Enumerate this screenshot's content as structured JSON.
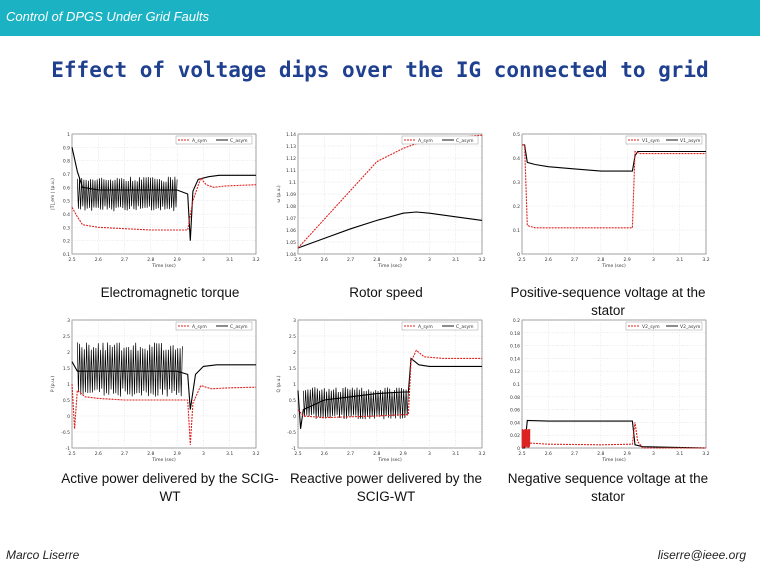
{
  "header": {
    "title": "Control of DPGS Under Grid Faults"
  },
  "slide": {
    "title": "Effect of voltage dips over the IG connected to grid"
  },
  "captions": {
    "p1": "Electromagnetic torque",
    "p2": "Rotor speed",
    "p3": "Positive-sequence voltage at the stator",
    "p4": "Active power delivered by the SCIG-WT",
    "p5": "Reactive power delivered by the SCIG-WT",
    "p6": "Negative sequence voltage at the stator"
  },
  "footer": {
    "author": "Marco Liserre",
    "email": "liserre@ieee.org"
  },
  "colors": {
    "topbar": "#1bb3c4",
    "title": "#1f3f8f",
    "sym": "#000000",
    "asym": "#dd2222"
  },
  "chart_data": [
    {
      "type": "line",
      "id": "p1",
      "xlabel": "Time (sec)",
      "ylabel": "|T|_em | (p.u.)",
      "xticks": [
        "2.5",
        "2.6",
        "2.7",
        "2.8",
        "2.9",
        "3",
        "3.1",
        "3.2"
      ],
      "yticks": [
        "0.1",
        "0.2",
        "0.3",
        "0.4",
        "0.5",
        "0.6",
        "0.7",
        "0.8",
        "0.9",
        "1"
      ],
      "xlim": [
        2.5,
        3.2
      ],
      "ylim": [
        0.1,
        1
      ],
      "legend": [
        "A_sym",
        "C_asym"
      ],
      "series": [
        {
          "role": "sym",
          "values": [
            [
              2.5,
              0.9
            ],
            [
              2.52,
              0.72
            ],
            [
              2.54,
              0.6
            ],
            [
              2.6,
              0.58
            ],
            [
              2.7,
              0.58
            ],
            [
              2.8,
              0.58
            ],
            [
              2.9,
              0.58
            ],
            [
              2.94,
              0.55
            ],
            [
              2.95,
              0.2
            ],
            [
              2.96,
              0.57
            ],
            [
              2.98,
              0.66
            ],
            [
              3.02,
              0.68
            ],
            [
              3.06,
              0.69
            ],
            [
              3.2,
              0.69
            ]
          ],
          "osc": [
            2.52,
            2.9,
            0.42,
            0.68
          ]
        },
        {
          "role": "asym",
          "values": [
            [
              2.5,
              0.45
            ],
            [
              2.52,
              0.38
            ],
            [
              2.54,
              0.32
            ],
            [
              2.6,
              0.3
            ],
            [
              2.7,
              0.29
            ],
            [
              2.8,
              0.28
            ],
            [
              2.9,
              0.28
            ],
            [
              2.94,
              0.28
            ],
            [
              2.96,
              0.5
            ],
            [
              2.99,
              0.67
            ],
            [
              3.01,
              0.62
            ],
            [
              3.04,
              0.6
            ],
            [
              3.08,
              0.61
            ],
            [
              3.2,
              0.62
            ]
          ]
        }
      ]
    },
    {
      "type": "line",
      "id": "p2",
      "xlabel": "Time (sec)",
      "ylabel": "ω (p.u.)",
      "xticks": [
        "2.5",
        "2.6",
        "2.7",
        "2.8",
        "2.9",
        "3",
        "3.1",
        "3.2"
      ],
      "yticks": [
        "1.04",
        "1.05",
        "1.06",
        "1.07",
        "1.08",
        "1.09",
        "1.1",
        "1.11",
        "1.12",
        "1.13",
        "1.14"
      ],
      "xlim": [
        2.5,
        3.2
      ],
      "ylim": [
        1.04,
        1.14
      ],
      "legend": [
        "A_sym",
        "C_asym"
      ],
      "series": [
        {
          "role": "sym",
          "values": [
            [
              2.5,
              1.045
            ],
            [
              2.6,
              1.053
            ],
            [
              2.7,
              1.061
            ],
            [
              2.8,
              1.068
            ],
            [
              2.9,
              1.074
            ],
            [
              2.95,
              1.075
            ],
            [
              3.0,
              1.074
            ],
            [
              3.1,
              1.071
            ],
            [
              3.2,
              1.068
            ]
          ]
        },
        {
          "role": "asym",
          "values": [
            [
              2.5,
              1.045
            ],
            [
              2.6,
              1.069
            ],
            [
              2.7,
              1.093
            ],
            [
              2.8,
              1.117
            ],
            [
              2.9,
              1.128
            ],
            [
              2.95,
              1.132
            ],
            [
              3.0,
              1.135
            ],
            [
              3.1,
              1.137
            ],
            [
              3.2,
              1.139
            ]
          ]
        }
      ]
    },
    {
      "type": "line",
      "id": "p3",
      "xlabel": "Time (sec)",
      "ylabel": "",
      "xticks": [
        "2.5",
        "2.6",
        "2.7",
        "2.8",
        "2.9",
        "3",
        "3.1",
        "3.2"
      ],
      "yticks": [
        "0",
        "0.1",
        "0.2",
        "0.3",
        "0.4",
        "0.5"
      ],
      "xlim": [
        2.5,
        3.2
      ],
      "ylim": [
        0,
        0.55
      ],
      "legend": [
        "V1_sym",
        "V1_asym"
      ],
      "series": [
        {
          "role": "sym",
          "values": [
            [
              2.5,
              0.5
            ],
            [
              2.51,
              0.5
            ],
            [
              2.52,
              0.42
            ],
            [
              2.55,
              0.41
            ],
            [
              2.6,
              0.4
            ],
            [
              2.7,
              0.39
            ],
            [
              2.8,
              0.38
            ],
            [
              2.9,
              0.38
            ],
            [
              2.92,
              0.38
            ],
            [
              2.93,
              0.45
            ],
            [
              2.94,
              0.47
            ],
            [
              3.0,
              0.47
            ],
            [
              3.2,
              0.47
            ]
          ]
        },
        {
          "role": "asym",
          "values": [
            [
              2.5,
              0.5
            ],
            [
              2.51,
              0.5
            ],
            [
              2.52,
              0.13
            ],
            [
              2.55,
              0.12
            ],
            [
              2.6,
              0.12
            ],
            [
              2.7,
              0.12
            ],
            [
              2.8,
              0.12
            ],
            [
              2.9,
              0.12
            ],
            [
              2.92,
              0.12
            ],
            [
              2.93,
              0.47
            ],
            [
              2.95,
              0.46
            ],
            [
              3.0,
              0.46
            ],
            [
              3.2,
              0.46
            ]
          ]
        }
      ]
    },
    {
      "type": "line",
      "id": "p4",
      "xlabel": "Time (sec)",
      "ylabel": "P (p.u.)",
      "xticks": [
        "2.5",
        "2.6",
        "2.7",
        "2.8",
        "2.9",
        "3",
        "3.1",
        "3.2"
      ],
      "yticks": [
        "-1",
        "-0.5",
        "0",
        "0.5",
        "1",
        "1.5",
        "2",
        "2.5",
        "3"
      ],
      "xlim": [
        2.5,
        3.2
      ],
      "ylim": [
        -1,
        3
      ],
      "legend": [
        "A_sym",
        "C_asym"
      ],
      "series": [
        {
          "role": "sym",
          "values": [
            [
              2.5,
              1.7
            ],
            [
              2.52,
              1.4
            ],
            [
              2.6,
              1.4
            ],
            [
              2.9,
              1.4
            ],
            [
              2.94,
              1.3
            ],
            [
              2.95,
              0.2
            ],
            [
              2.97,
              1.3
            ],
            [
              3.0,
              1.55
            ],
            [
              3.05,
              1.6
            ],
            [
              3.2,
              1.6
            ]
          ],
          "osc": [
            2.52,
            2.92,
            0.6,
            2.3
          ]
        },
        {
          "role": "asym",
          "values": [
            [
              2.5,
              1.0
            ],
            [
              2.51,
              -0.4
            ],
            [
              2.52,
              0.8
            ],
            [
              2.55,
              0.6
            ],
            [
              2.6,
              0.55
            ],
            [
              2.7,
              0.5
            ],
            [
              2.8,
              0.5
            ],
            [
              2.9,
              0.5
            ],
            [
              2.94,
              0.5
            ],
            [
              2.95,
              -0.9
            ],
            [
              2.96,
              0.4
            ],
            [
              2.99,
              0.95
            ],
            [
              3.03,
              0.85
            ],
            [
              3.1,
              0.88
            ],
            [
              3.2,
              0.9
            ]
          ]
        }
      ]
    },
    {
      "type": "line",
      "id": "p5",
      "xlabel": "Time (sec)",
      "ylabel": "Q (p.u.)",
      "xticks": [
        "2.5",
        "2.6",
        "2.7",
        "2.8",
        "2.9",
        "3",
        "3.1",
        "3.2"
      ],
      "yticks": [
        "-1",
        "-0.5",
        "0",
        "0.5",
        "1",
        "1.5",
        "2",
        "2.5",
        "3"
      ],
      "xlim": [
        2.5,
        3.2
      ],
      "ylim": [
        -1,
        3
      ],
      "legend": [
        "A_sym",
        "C_asym"
      ],
      "series": [
        {
          "role": "sym",
          "values": [
            [
              2.5,
              0.8
            ],
            [
              2.51,
              -0.4
            ],
            [
              2.52,
              0.2
            ],
            [
              2.6,
              0.5
            ],
            [
              2.7,
              0.6
            ],
            [
              2.8,
              0.7
            ],
            [
              2.9,
              0.75
            ],
            [
              2.92,
              0.75
            ],
            [
              2.93,
              1.8
            ],
            [
              2.96,
              1.6
            ],
            [
              3.0,
              1.55
            ],
            [
              3.2,
              1.55
            ]
          ],
          "osc": [
            2.52,
            2.92,
            -0.1,
            0.9
          ]
        },
        {
          "role": "asym",
          "values": [
            [
              2.5,
              0.2
            ],
            [
              2.52,
              0.0
            ],
            [
              2.6,
              -0.05
            ],
            [
              2.8,
              0.0
            ],
            [
              2.92,
              0.05
            ],
            [
              2.93,
              1.7
            ],
            [
              2.95,
              2.05
            ],
            [
              2.98,
              1.85
            ],
            [
              3.05,
              1.8
            ],
            [
              3.2,
              1.8
            ]
          ]
        }
      ]
    },
    {
      "type": "line",
      "id": "p6",
      "xlabel": "Time (sec)",
      "ylabel": "",
      "xticks": [
        "2.5",
        "2.6",
        "2.7",
        "2.8",
        "2.9",
        "3",
        "3.1",
        "3.2"
      ],
      "yticks": [
        "0",
        "0.02",
        "0.04",
        "0.06",
        "0.08",
        "0.1",
        "0.12",
        "0.14",
        "0.16",
        "0.18",
        "0.2"
      ],
      "xlim": [
        2.5,
        3.2
      ],
      "ylim": [
        0,
        0.2
      ],
      "legend": [
        "V2_sym",
        "V2_asym"
      ],
      "series": [
        {
          "role": "sym",
          "values": [
            [
              2.5,
              0.0
            ],
            [
              2.51,
              0.0
            ],
            [
              2.52,
              0.043
            ],
            [
              2.6,
              0.042
            ],
            [
              2.7,
              0.042
            ],
            [
              2.8,
              0.042
            ],
            [
              2.9,
              0.042
            ],
            [
              2.92,
              0.042
            ],
            [
              2.93,
              0.005
            ],
            [
              2.96,
              0.002
            ],
            [
              3.2,
              0.0
            ]
          ]
        },
        {
          "role": "asym",
          "values": [
            [
              2.5,
              0.0
            ],
            [
              2.51,
              0.02
            ],
            [
              2.52,
              0.008
            ],
            [
              2.6,
              0.006
            ],
            [
              2.8,
              0.005
            ],
            [
              2.92,
              0.006
            ],
            [
              2.93,
              0.04
            ],
            [
              2.94,
              0.01
            ],
            [
              2.96,
              0.0
            ],
            [
              3.2,
              0.0
            ]
          ],
          "osc": [
            2.5,
            2.53,
            0.0,
            0.03
          ]
        }
      ]
    }
  ]
}
